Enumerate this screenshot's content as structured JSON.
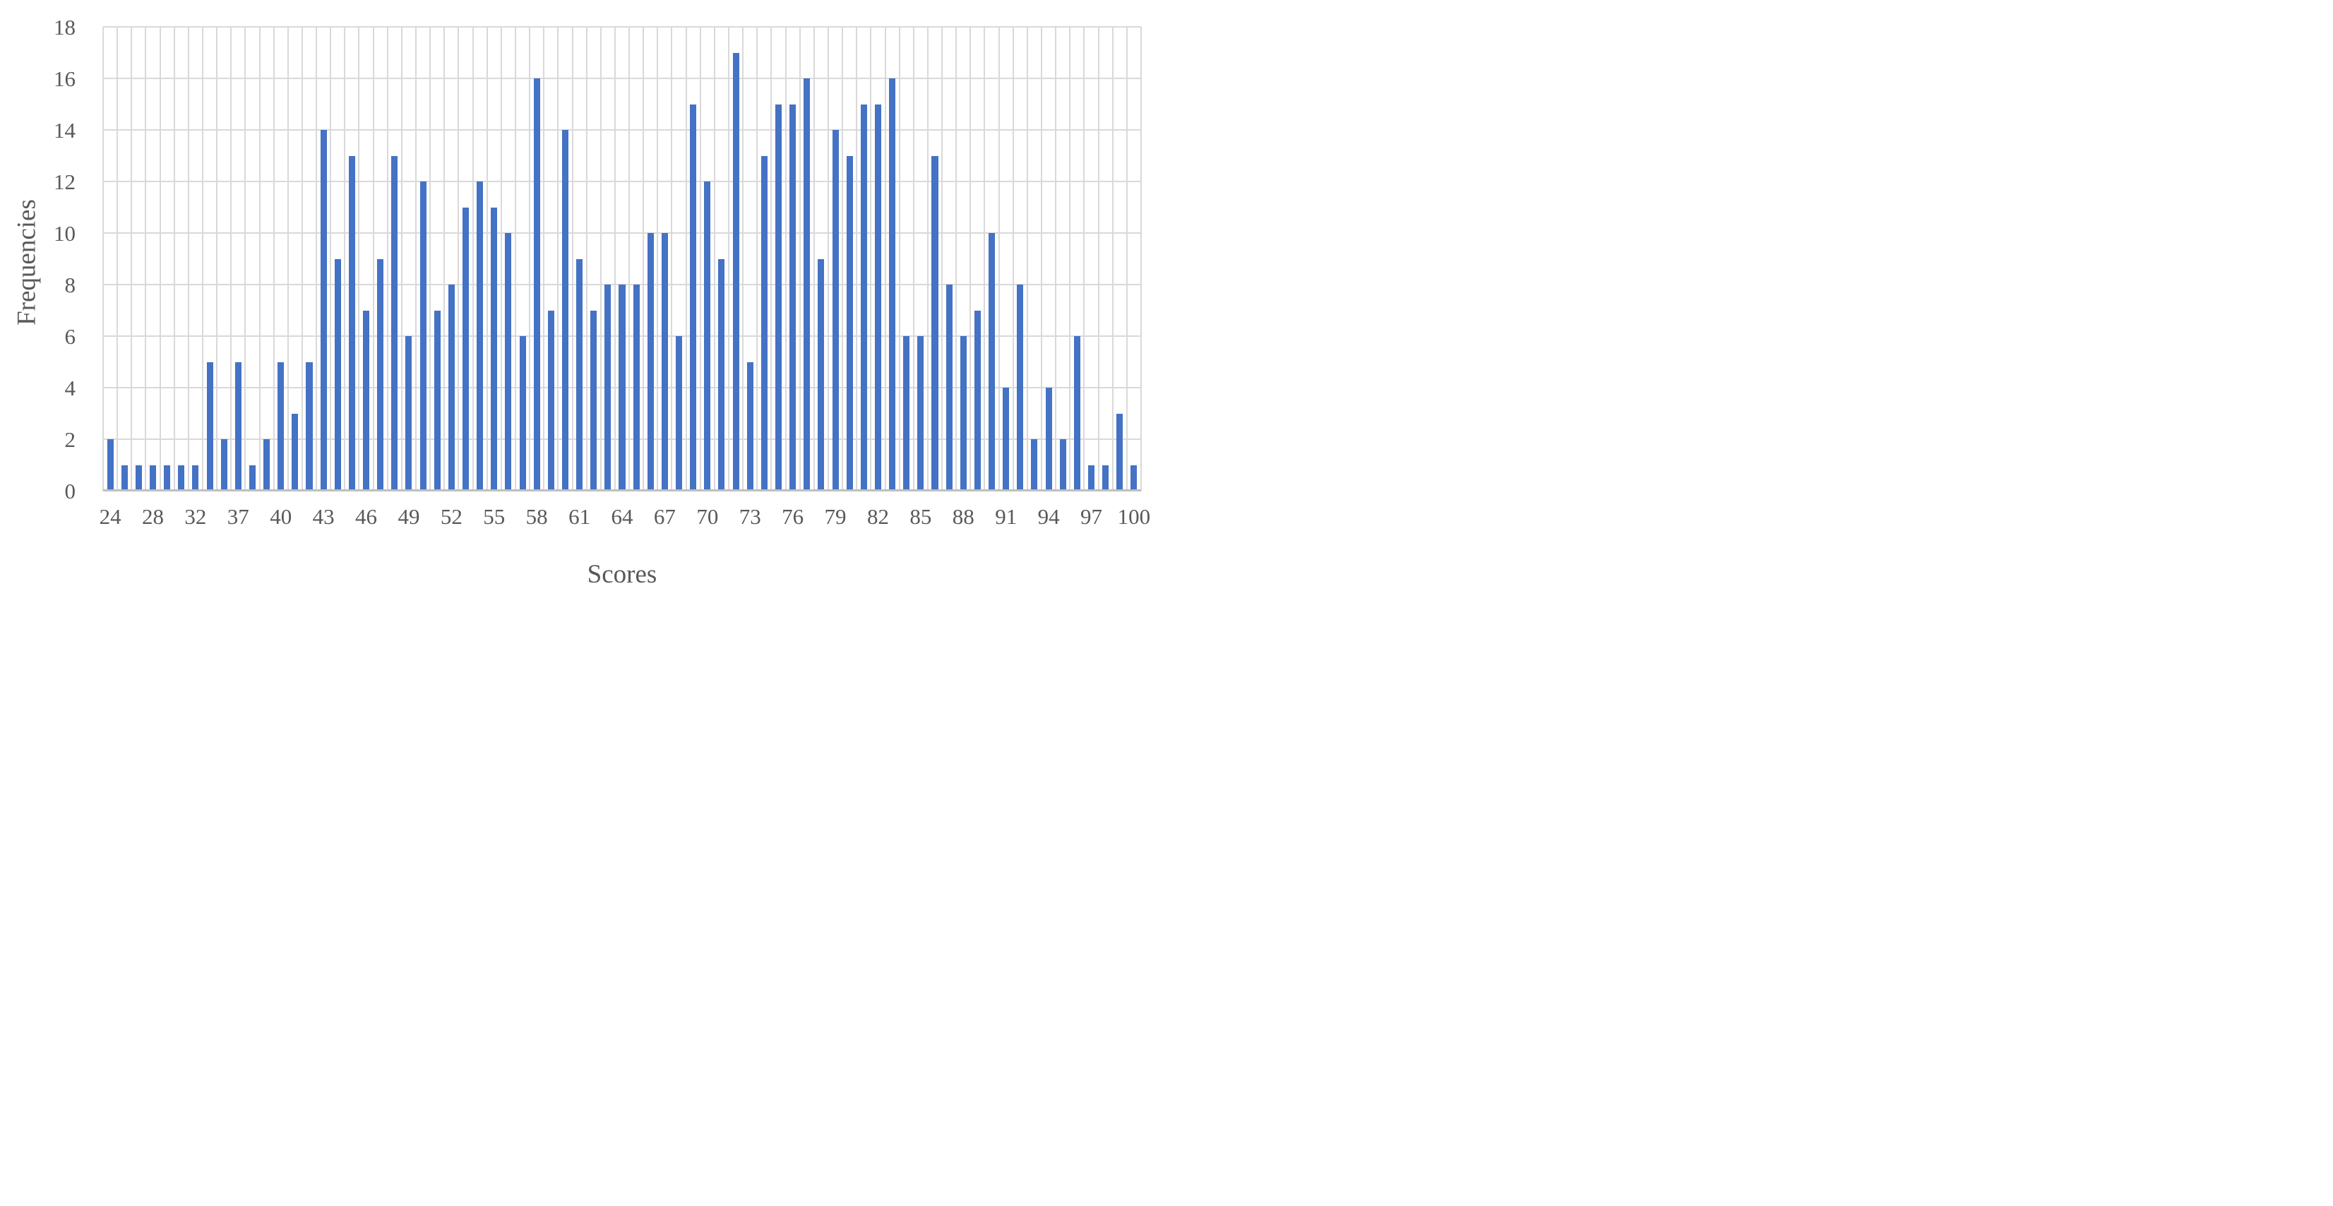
{
  "chart_data": {
    "type": "bar",
    "title": "",
    "xlabel": "Scores",
    "ylabel": "Frequencies",
    "values": [
      2,
      1,
      1,
      1,
      1,
      1,
      1,
      5,
      2,
      5,
      1,
      2,
      5,
      3,
      5,
      14,
      9,
      13,
      7,
      9,
      13,
      6,
      12,
      7,
      8,
      11,
      12,
      11,
      10,
      6,
      16,
      7,
      14,
      9,
      7,
      8,
      8,
      8,
      10,
      10,
      6,
      15,
      12,
      9,
      17,
      5,
      13,
      15,
      15,
      16,
      9,
      14,
      13,
      15,
      15,
      16,
      6,
      6,
      13,
      8,
      6,
      7,
      10,
      4,
      8,
      2,
      4,
      2,
      6,
      1,
      1,
      3,
      1
    ],
    "x_tick_labels": [
      "24",
      "28",
      "32",
      "37",
      "40",
      "43",
      "46",
      "49",
      "52",
      "55",
      "58",
      "61",
      "64",
      "67",
      "70",
      "73",
      "76",
      "79",
      "82",
      "85",
      "88",
      "91",
      "94",
      "97",
      "100"
    ],
    "x_tick_every": 3,
    "y_ticks": [
      "0",
      "2",
      "4",
      "6",
      "8",
      "10",
      "12",
      "14",
      "16",
      "18"
    ],
    "ylim": [
      0,
      18
    ],
    "grid": "both",
    "legend": "none",
    "colors": {
      "bar": "#4472C4",
      "gridline": "#D9D9D9",
      "axis_line": "#BFBFBF",
      "text": "#595959",
      "background": "#FFFFFF"
    }
  }
}
